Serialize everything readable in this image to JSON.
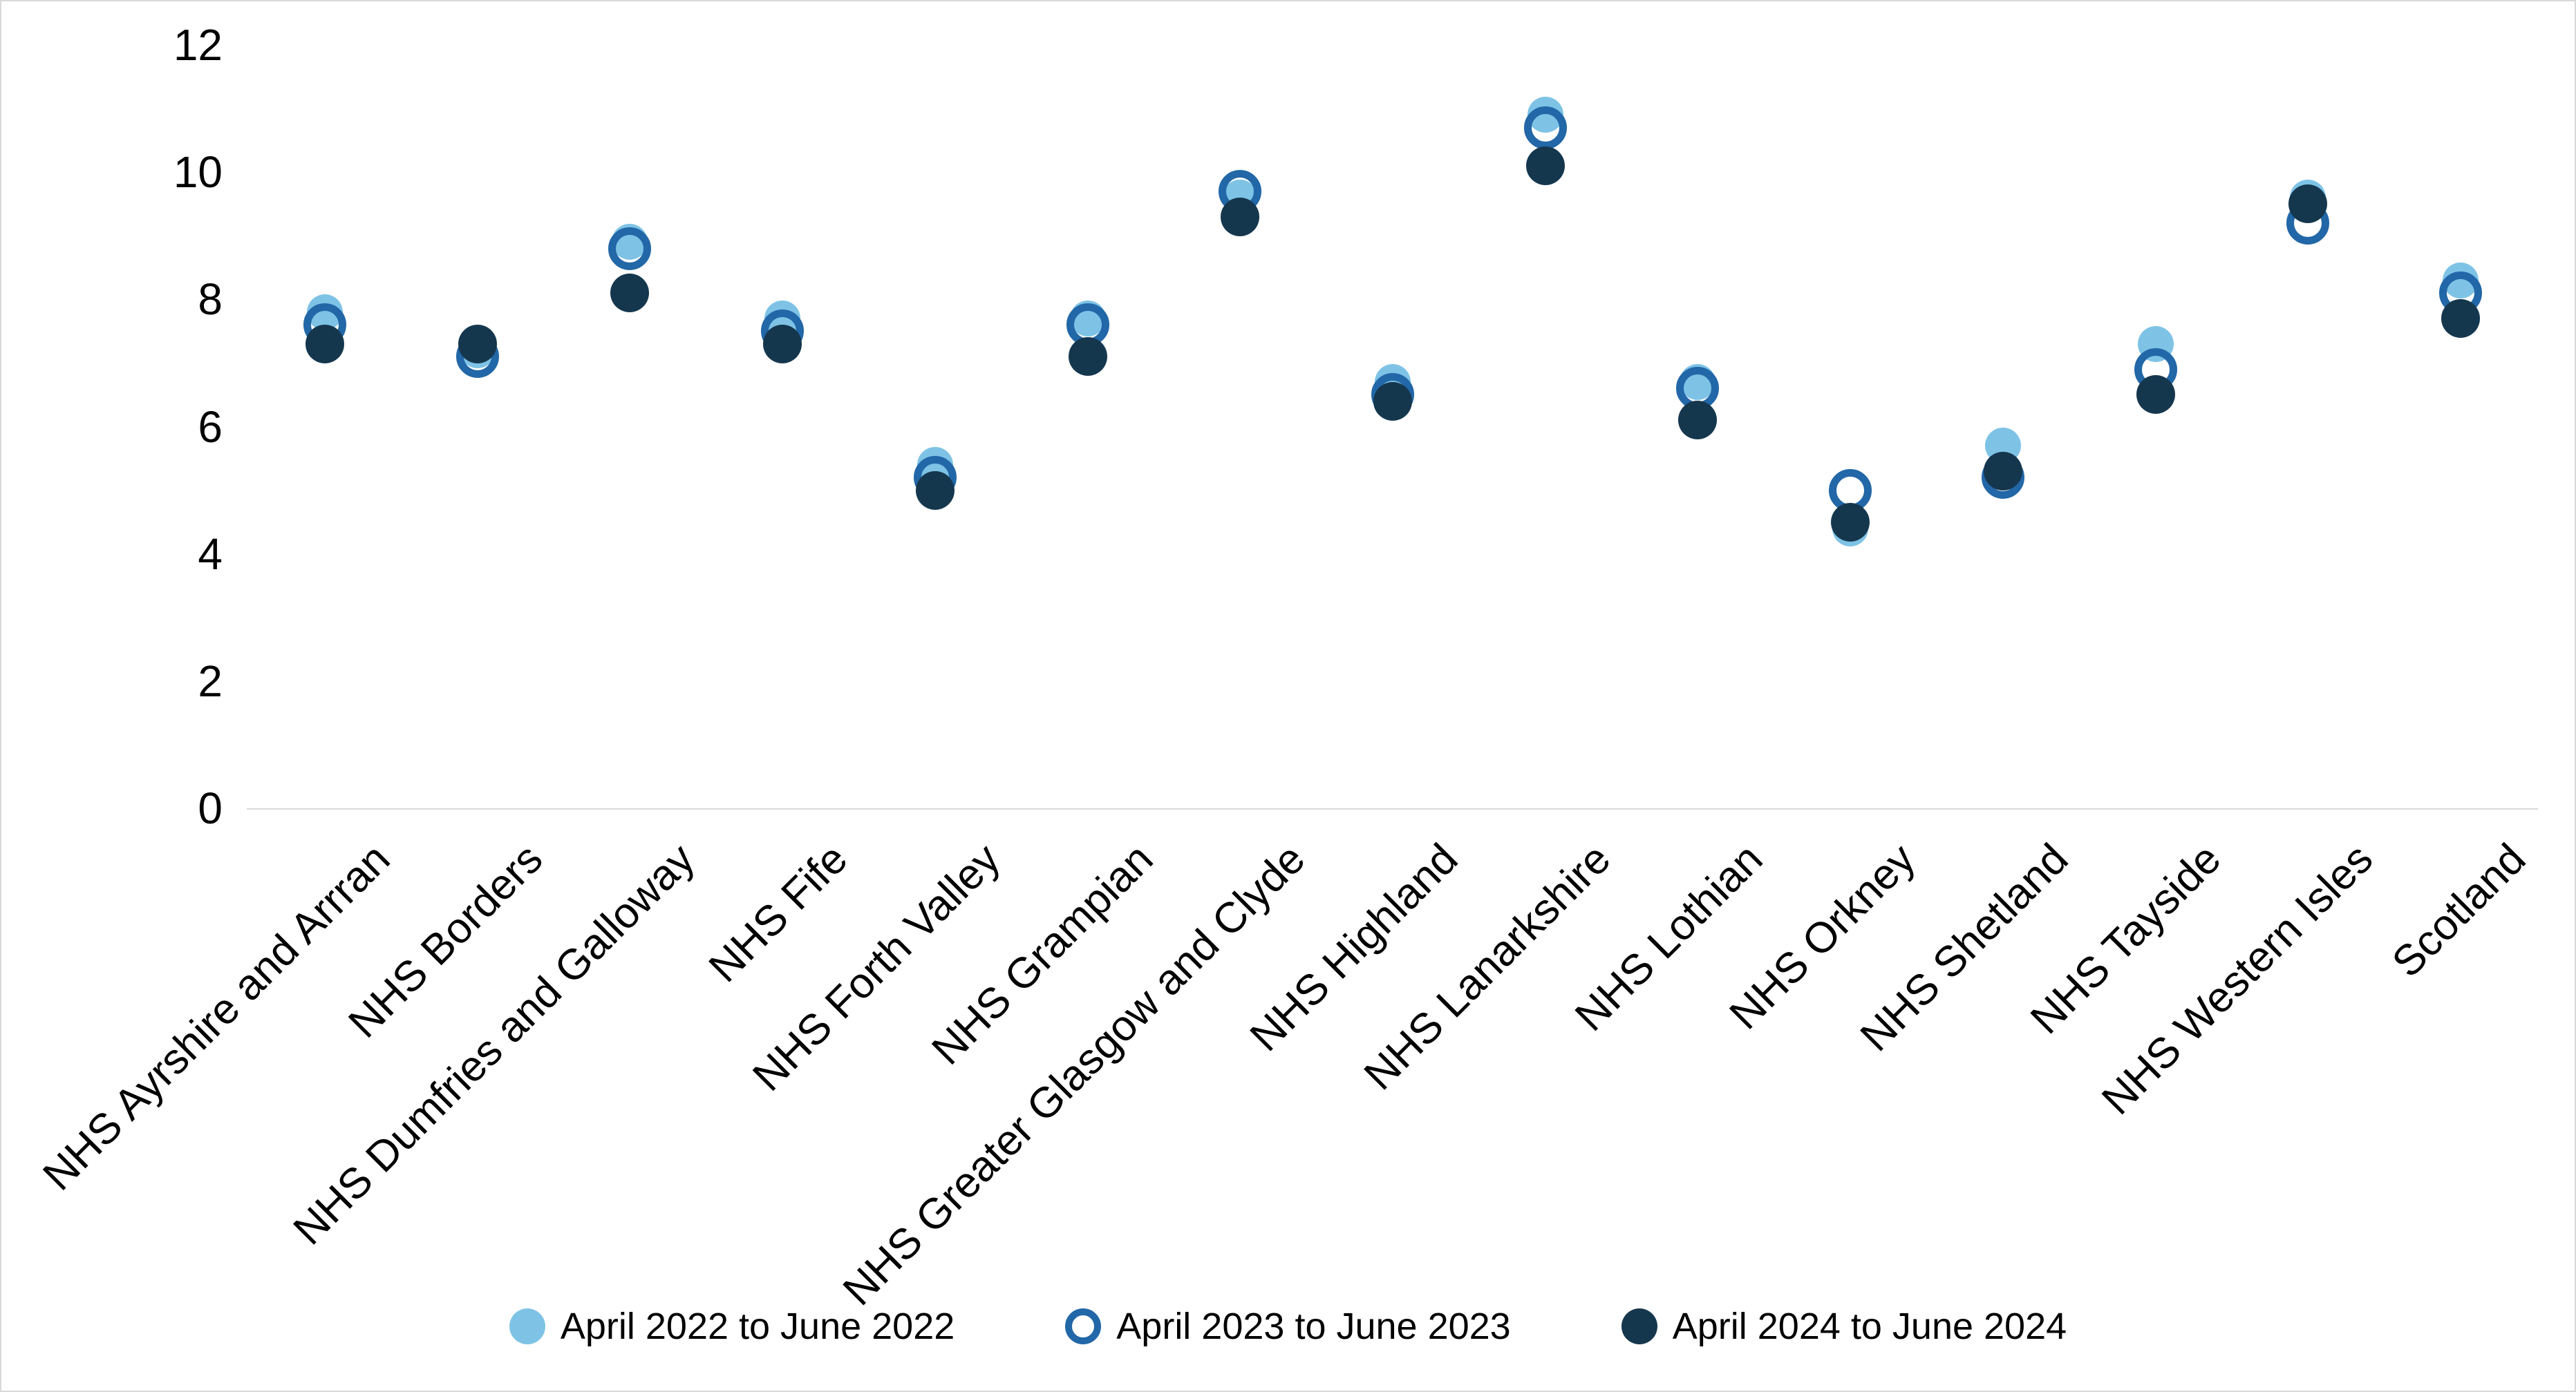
{
  "chart_data": {
    "type": "scatter",
    "title": "",
    "xlabel": "",
    "ylabel": "",
    "categories": [
      "NHS Ayrshire and Arrran",
      "NHS Borders",
      "NHS Dumfries and Galloway",
      "NHS Fife",
      "NHS Forth Valley",
      "NHS Grampian",
      "NHS Greater Glasgow and Clyde",
      "NHS Highland",
      "NHS Lanarkshire",
      "NHS Lothian",
      "NHS Orkney",
      "NHS Shetland",
      "NHS Tayside",
      "NHS Western Isles",
      "Scotland"
    ],
    "series": [
      {
        "name": "April 2022 to June 2022",
        "marker": "filled-circle",
        "color": "#7EC3E6",
        "values": [
          7.8,
          7.2,
          8.9,
          7.7,
          5.4,
          7.7,
          9.6,
          6.7,
          10.9,
          6.7,
          4.4,
          5.7,
          7.3,
          9.6,
          8.3
        ]
      },
      {
        "name": "April 2023 to June 2023",
        "marker": "open-circle",
        "color": "#2267A7",
        "values": [
          7.6,
          7.1,
          8.8,
          7.5,
          5.2,
          7.6,
          9.7,
          6.5,
          10.7,
          6.6,
          5.0,
          5.2,
          6.9,
          9.2,
          8.1
        ]
      },
      {
        "name": "April 2024 to June 2024",
        "marker": "filled-circle",
        "color": "#15374E",
        "values": [
          7.3,
          7.3,
          8.1,
          7.3,
          5.0,
          7.1,
          9.3,
          6.4,
          10.1,
          6.1,
          4.5,
          5.3,
          6.5,
          9.5,
          7.7
        ]
      }
    ],
    "ylim": [
      0,
      12
    ],
    "yticks": [
      0,
      2,
      4,
      6,
      8,
      10,
      12
    ],
    "grid": "off",
    "legend_position": "bottom",
    "axis_color": "#D9D9D9",
    "text_color": "#000000",
    "background_color": "#FFFFFF"
  }
}
